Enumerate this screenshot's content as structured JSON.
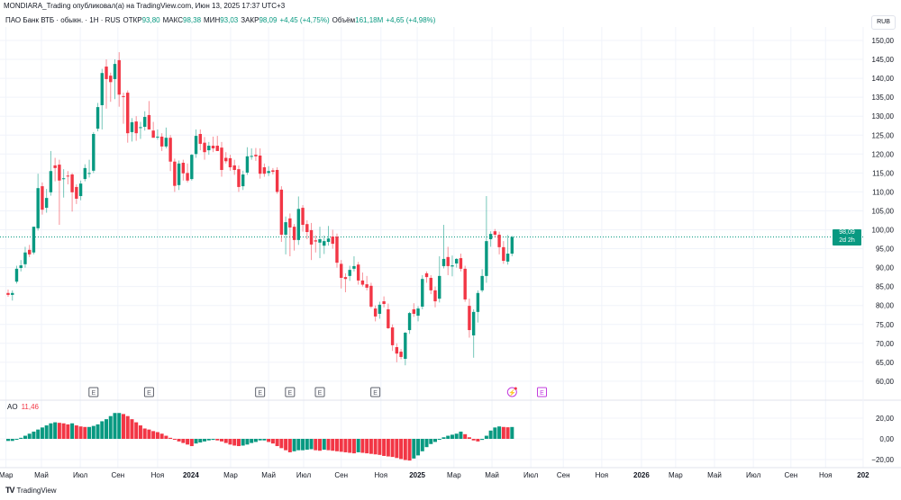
{
  "publisher": "MONDIARA_Trading опубликовал(а) на TradingView.com, Июн 13, 2025 17:37 UTC+3",
  "legend": {
    "symbol": "ПАО Банк ВТБ · обыкн. · 1Н · RUS",
    "open_label": "ОТКР",
    "open": "93,80",
    "high_label": "МАКС",
    "high": "98,38",
    "low_label": "МИН",
    "low": "93,03",
    "close_label": "ЗАКР",
    "close": "98,09",
    "change": "+4,45 (+4,75%)",
    "volume_label": "Объём",
    "volume": "161,18M",
    "volume_change": "+4,65 (+4,98%)"
  },
  "currency": "RUB",
  "last_price": {
    "value": 98.09,
    "label": "98,09",
    "countdown": "2d 2h"
  },
  "indicator": {
    "name": "AO",
    "value": "11,46"
  },
  "branding": "TradingView",
  "colors": {
    "up": "#089981",
    "down": "#f23645",
    "grid": "#f0f3fa",
    "event": "#5d606b",
    "event_future": "#c33ede"
  },
  "chart_data": [
    {
      "type": "candlestick",
      "title": "ПАО Банк ВТБ · 1Н",
      "ylabel": "RUB",
      "ylim": [
        57,
        152
      ],
      "yticks": [
        150,
        145,
        140,
        135,
        130,
        125,
        120,
        115,
        110,
        105,
        100,
        95,
        90,
        85,
        80,
        75,
        70,
        65,
        60
      ],
      "ytick_labels": [
        "150,00",
        "145,00",
        "140,00",
        "135,00",
        "130,00",
        "125,00",
        "120,00",
        "115,00",
        "110,00",
        "105,00",
        "100,00",
        "95,00",
        "90,00",
        "85,00",
        "80,00",
        "75,00",
        "70,00",
        "65,00",
        "60,00"
      ],
      "grid": true,
      "candles_ohlc": [
        [
          83.3,
          84.2,
          82.3,
          82.8
        ],
        [
          82.8,
          84.0,
          81.3,
          83.3
        ],
        [
          86.3,
          90.5,
          85.8,
          89.7
        ],
        [
          89.9,
          92.0,
          89.0,
          90.6
        ],
        [
          90.9,
          95.5,
          90.0,
          94.0
        ],
        [
          94.7,
          96.0,
          92.8,
          93.5
        ],
        [
          94.0,
          100.8,
          93.5,
          100.8
        ],
        [
          100.4,
          114.8,
          99.8,
          111.0
        ],
        [
          111.5,
          112.5,
          104.0,
          105.3
        ],
        [
          105.8,
          110.8,
          104.5,
          108.4
        ],
        [
          109.9,
          120.8,
          109.0,
          115.5
        ],
        [
          117.0,
          119.0,
          112.8,
          116.3
        ],
        [
          117.2,
          118.5,
          101.3,
          113.0
        ],
        [
          113.4,
          116.0,
          108.5,
          113.6
        ],
        [
          114.3,
          115.5,
          112.0,
          114.2
        ],
        [
          114.6,
          115.0,
          104.8,
          109.9
        ],
        [
          111.3,
          112.0,
          106.8,
          108.2
        ],
        [
          108.9,
          113.0,
          107.8,
          112.2
        ],
        [
          113.4,
          117.3,
          112.8,
          116.3
        ],
        [
          115.0,
          118.5,
          113.8,
          115.0
        ],
        [
          115.6,
          125.8,
          115.0,
          125.3
        ],
        [
          126.7,
          133.5,
          126.0,
          132.4
        ],
        [
          132.9,
          142.5,
          126.5,
          141.4
        ],
        [
          143.1,
          145.0,
          132.0,
          139.8
        ],
        [
          140.7,
          141.5,
          133.8,
          139.0
        ],
        [
          139.8,
          145.0,
          134.5,
          143.8
        ],
        [
          144.8,
          146.9,
          132.5,
          135.7
        ],
        [
          135.3,
          136.2,
          128.0,
          135.2
        ],
        [
          136.2,
          136.8,
          123.0,
          125.5
        ],
        [
          125.8,
          129.5,
          123.3,
          128.4
        ],
        [
          128.6,
          130.0,
          123.5,
          125.5
        ],
        [
          127.0,
          128.5,
          124.0,
          127.1
        ],
        [
          127.2,
          131.3,
          126.2,
          129.8
        ],
        [
          130.3,
          134.0,
          127.3,
          126.5
        ],
        [
          126.2,
          128.5,
          124.8,
          124.3
        ],
        [
          124.5,
          126.5,
          123.8,
          124.6
        ],
        [
          124.6,
          125.5,
          120.8,
          122.0
        ],
        [
          122.0,
          127.0,
          121.5,
          124.3
        ],
        [
          124.3,
          125.0,
          115.5,
          118.0
        ],
        [
          118.0,
          118.8,
          110.0,
          111.6
        ],
        [
          111.8,
          118.3,
          110.5,
          117.5
        ],
        [
          117.7,
          118.5,
          113.0,
          114.9
        ],
        [
          115.0,
          117.5,
          112.5,
          113.0
        ],
        [
          113.4,
          120.0,
          113.0,
          119.8
        ],
        [
          120.0,
          126.5,
          119.0,
          124.8
        ],
        [
          125.3,
          126.5,
          121.0,
          122.7
        ],
        [
          123.0,
          124.5,
          118.5,
          120.5
        ],
        [
          121.0,
          123.2,
          119.8,
          122.2
        ],
        [
          122.2,
          124.6,
          120.5,
          121.5
        ],
        [
          122.2,
          124.8,
          120.8,
          120.8
        ],
        [
          121.7,
          123.2,
          114.0,
          115.8
        ],
        [
          119.0,
          120.5,
          117.5,
          118.1
        ],
        [
          118.9,
          119.8,
          115.6,
          116.5
        ],
        [
          117.0,
          118.5,
          114.5,
          115.8
        ],
        [
          116.0,
          117.0,
          110.0,
          111.3
        ],
        [
          111.5,
          115.6,
          110.5,
          114.6
        ],
        [
          115.1,
          121.8,
          114.5,
          119.4
        ],
        [
          119.3,
          121.5,
          118.5,
          119.5
        ],
        [
          119.8,
          121.6,
          118.2,
          119.4
        ],
        [
          119.6,
          121.5,
          113.5,
          114.8
        ],
        [
          116.5,
          117.5,
          114.0,
          114.8
        ],
        [
          115.0,
          116.8,
          114.2,
          115.5
        ],
        [
          115.7,
          116.3,
          114.6,
          115.3
        ],
        [
          115.8,
          116.5,
          109.5,
          110.0
        ],
        [
          110.6,
          111.5,
          96.8,
          98.7
        ],
        [
          98.7,
          103.5,
          93.5,
          102.0
        ],
        [
          103.0,
          104.3,
          93.0,
          100.6
        ],
        [
          100.8,
          101.5,
          94.5,
          97.3
        ],
        [
          97.3,
          108.8,
          96.0,
          105.5
        ],
        [
          105.8,
          106.5,
          99.5,
          101.3
        ],
        [
          101.5,
          102.5,
          97.5,
          99.4
        ],
        [
          99.9,
          101.8,
          92.0,
          96.1
        ],
        [
          97.2,
          98.5,
          94.0,
          96.9
        ],
        [
          96.6,
          100.8,
          92.5,
          97.5
        ],
        [
          95.8,
          98.5,
          93.6,
          97.0
        ],
        [
          96.8,
          101.0,
          95.8,
          97.7
        ],
        [
          98.2,
          100.0,
          95.0,
          96.3
        ],
        [
          98.2,
          99.0,
          90.0,
          91.3
        ],
        [
          91.0,
          92.0,
          84.5,
          87.3
        ],
        [
          87.5,
          88.5,
          83.5,
          87.0
        ],
        [
          87.8,
          90.5,
          86.5,
          89.4
        ],
        [
          89.7,
          93.0,
          89.0,
          90.4
        ],
        [
          90.8,
          91.5,
          85.5,
          86.6
        ],
        [
          86.6,
          88.7,
          85.0,
          85.5
        ],
        [
          85.6,
          87.8,
          84.0,
          84.7
        ],
        [
          85.2,
          86.0,
          79.3,
          79.7
        ],
        [
          79.2,
          80.0,
          75.8,
          77.1
        ],
        [
          77.8,
          81.0,
          76.5,
          80.2
        ],
        [
          81.1,
          82.4,
          79.5,
          80.4
        ],
        [
          79.0,
          80.5,
          73.8,
          74.0
        ],
        [
          74.2,
          75.0,
          68.0,
          69.5
        ],
        [
          69.0,
          70.0,
          65.0,
          67.3
        ],
        [
          67.8,
          68.5,
          65.8,
          66.4
        ],
        [
          65.9,
          73.0,
          64.2,
          72.8
        ],
        [
          73.5,
          78.3,
          72.5,
          78.0
        ],
        [
          79.0,
          80.6,
          77.0,
          77.8
        ],
        [
          77.3,
          79.8,
          75.8,
          79.2
        ],
        [
          79.7,
          88.0,
          79.0,
          87.0
        ],
        [
          88.5,
          89.0,
          86.0,
          87.5
        ],
        [
          87.3,
          88.0,
          83.0,
          84.0
        ],
        [
          84.0,
          85.0,
          79.5,
          81.1
        ],
        [
          81.8,
          93.0,
          80.8,
          87.8
        ],
        [
          90.4,
          101.3,
          89.8,
          92.3
        ],
        [
          92.8,
          95.5,
          88.0,
          90.4
        ],
        [
          90.3,
          93.2,
          87.7,
          90.6
        ],
        [
          91.1,
          92.5,
          90.0,
          92.3
        ],
        [
          92.5,
          93.7,
          89.0,
          89.7
        ],
        [
          89.7,
          90.5,
          81.0,
          81.6
        ],
        [
          79.9,
          81.8,
          71.5,
          73.5
        ],
        [
          72.1,
          79.0,
          66.2,
          78.3
        ],
        [
          78.3,
          84.0,
          75.5,
          83.3
        ],
        [
          84.0,
          89.6,
          83.5,
          87.8
        ],
        [
          87.8,
          108.9,
          86.0,
          97.0
        ],
        [
          97.5,
          99.6,
          95.5,
          98.9
        ],
        [
          99.6,
          100.2,
          98.0,
          98.7
        ],
        [
          98.7,
          99.5,
          93.5,
          95.4
        ],
        [
          95.4,
          97.0,
          91.0,
          91.8
        ],
        [
          91.6,
          98.6,
          90.8,
          93.7
        ],
        [
          93.7,
          98.38,
          93.03,
          98.09
        ]
      ],
      "x_tick_labels": [
        {
          "label": "Мар",
          "bar": -0.5
        },
        {
          "label": "Май",
          "bar": 7.8
        },
        {
          "label": "Июл",
          "bar": 16.9
        },
        {
          "label": "Сен",
          "bar": 25.7
        },
        {
          "label": "Ноя",
          "bar": 35
        },
        {
          "label": "2024",
          "bar": 42.8,
          "bold": true
        },
        {
          "label": "Мар",
          "bar": 52.1
        },
        {
          "label": "Май",
          "bar": 61
        },
        {
          "label": "Июл",
          "bar": 69.2
        },
        {
          "label": "Сен",
          "bar": 78
        },
        {
          "label": "Ноя",
          "bar": 87.3
        },
        {
          "label": "2025",
          "bar": 95.8,
          "bold": true
        },
        {
          "label": "Мар",
          "bar": 104.4
        },
        {
          "label": "Май",
          "bar": 113.3
        },
        {
          "label": "Июл",
          "bar": 122.4
        },
        {
          "label": "Сен",
          "bar": 130
        },
        {
          "label": "Ноя",
          "bar": 139
        },
        {
          "label": "2026",
          "bar": 148.3,
          "bold": true
        },
        {
          "label": "Мар",
          "bar": 156.3
        },
        {
          "label": "Май",
          "bar": 165.4
        },
        {
          "label": "Июл",
          "bar": 174.5
        },
        {
          "label": "Сен",
          "bar": 183.3
        },
        {
          "label": "Ноя",
          "bar": 191.4
        },
        {
          "label": "202",
          "bar": 200.2,
          "bold": true
        }
      ],
      "events": [
        {
          "bar": 20,
          "label": "E"
        },
        {
          "bar": 33,
          "label": "E"
        },
        {
          "bar": 59,
          "label": "E"
        },
        {
          "bar": 66,
          "label": "E"
        },
        {
          "bar": 73,
          "label": "E"
        },
        {
          "bar": 86,
          "label": "E"
        },
        {
          "bar": 118,
          "label": "⚡",
          "type": "split"
        },
        {
          "bar": 125,
          "label": "E",
          "future": true
        }
      ]
    },
    {
      "type": "bar",
      "title": "AO",
      "ylim": [
        -26,
        30
      ],
      "yticks": [
        20,
        0,
        -20
      ],
      "ytick_labels": [
        "20,00",
        "0,00",
        "−20,00"
      ],
      "values": [
        -2,
        -2,
        -0.5,
        1,
        3,
        5,
        7,
        9,
        11,
        13,
        15,
        16,
        15.5,
        15,
        14,
        15,
        13,
        12,
        11.5,
        11.5,
        12.5,
        14,
        17,
        19,
        22,
        25,
        25,
        24,
        22,
        19,
        16,
        13,
        10,
        9,
        7.5,
        6.5,
        5,
        3,
        1,
        -0.5,
        -2.5,
        -4,
        -5.5,
        -7,
        -4.5,
        -3.5,
        -2.5,
        -1.5,
        -1,
        -1.5,
        -2.5,
        -4,
        -5.5,
        -6.5,
        -7,
        -6.5,
        -5.5,
        -4,
        -3,
        -1.5,
        -1.5,
        -3,
        -4.5,
        -7,
        -9,
        -11,
        -13,
        -12,
        -11,
        -11,
        -10.5,
        -10,
        -11,
        -11.5,
        -10.5,
        -11,
        -11.5,
        -12,
        -12.5,
        -13,
        -13.5,
        -14,
        -13,
        -13.5,
        -14,
        -14.5,
        -15,
        -15.5,
        -16.5,
        -17,
        -17.5,
        -18.5,
        -19.5,
        -20.5,
        -21,
        -19,
        -16,
        -12,
        -8,
        -5,
        -3,
        -0.5,
        1.5,
        3,
        4,
        5,
        7,
        4.5,
        1.5,
        -1.5,
        -2.5,
        -1,
        3,
        8,
        11,
        12,
        11.5,
        11.2,
        11.46
      ]
    }
  ]
}
